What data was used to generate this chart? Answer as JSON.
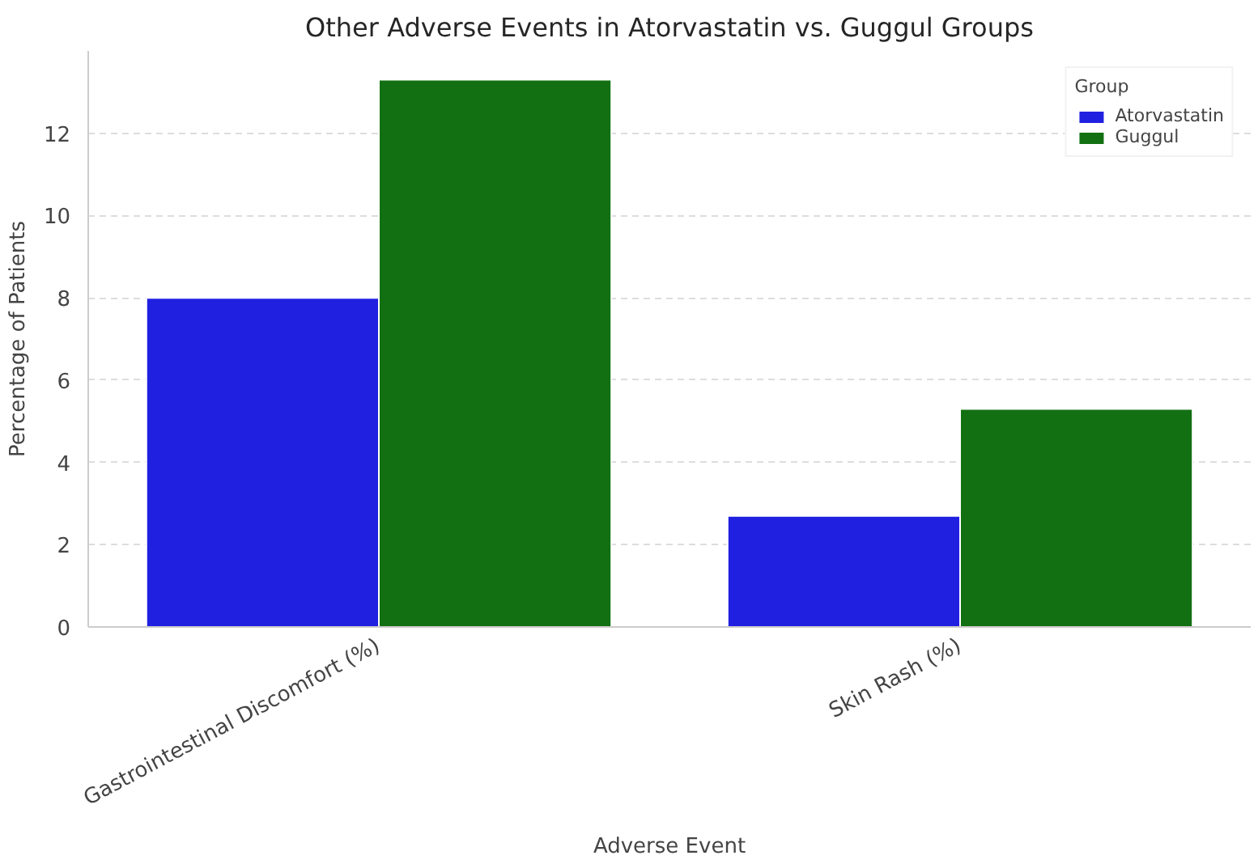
{
  "chart_data": {
    "type": "bar",
    "title": "Other Adverse Events in Atorvastatin vs. Guggul Groups",
    "xlabel": "Adverse Event",
    "ylabel": "Percentage of Patients",
    "legend_title": "Group",
    "categories": [
      "Gastrointestinal Discomfort (%)",
      "Skin Rash (%)"
    ],
    "series": [
      {
        "name": "Atorvastatin",
        "color": "#2020e0",
        "values": [
          8.0,
          2.7
        ]
      },
      {
        "name": "Guggul",
        "color": "#127012",
        "values": [
          13.3,
          5.3
        ]
      }
    ],
    "ylim": [
      0,
      14
    ],
    "yticks": [
      0,
      2,
      4,
      6,
      8,
      10,
      12
    ],
    "grid": "y",
    "legend": "top right"
  }
}
